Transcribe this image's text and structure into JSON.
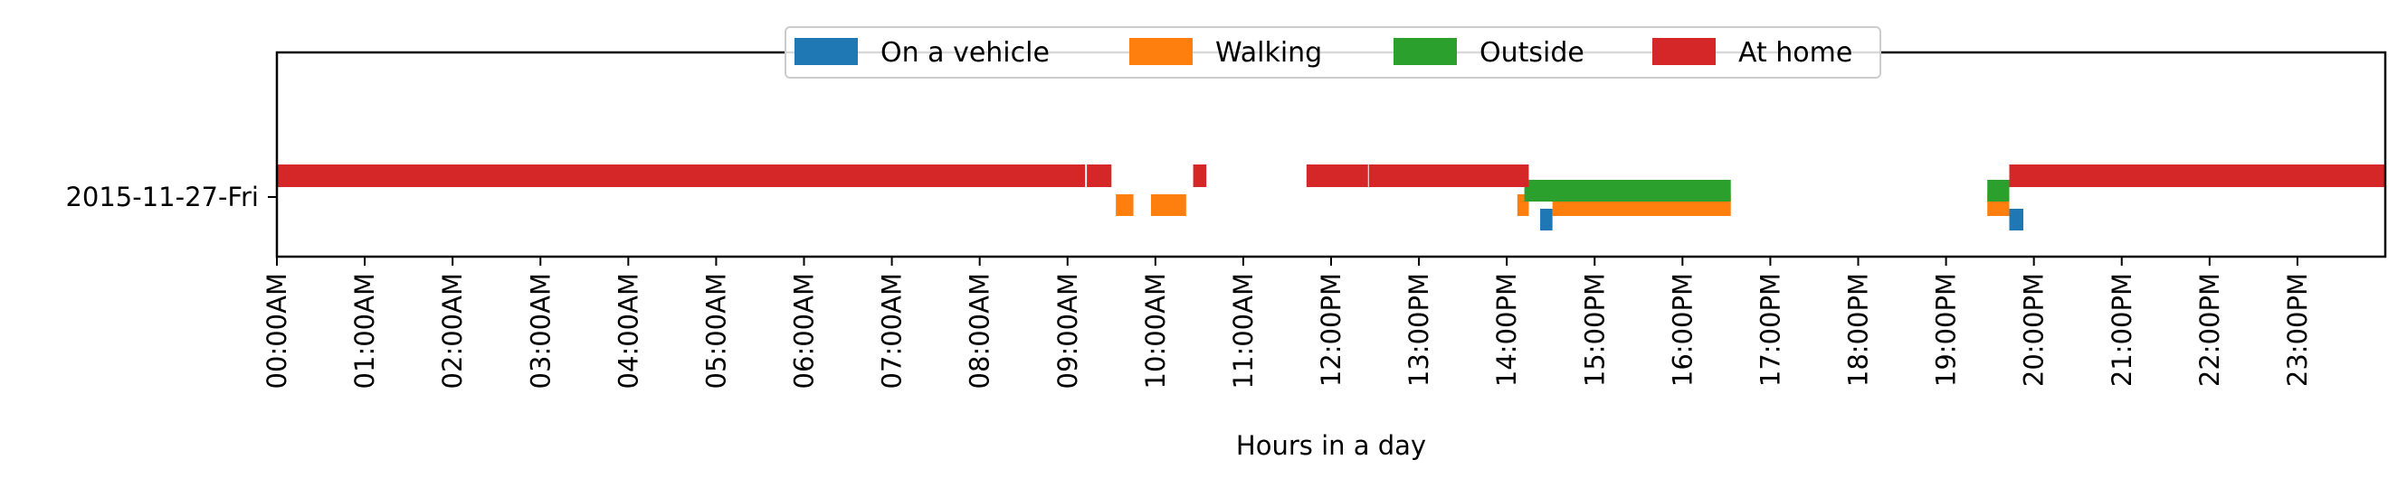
{
  "chart_data": {
    "type": "bar",
    "subtype": "horizontal-timeline",
    "title": "",
    "xlabel": "Hours in a day",
    "ylabel": "",
    "xlim": [
      0,
      24
    ],
    "x_unit": "hours",
    "grid": false,
    "legend": {
      "placement": "top-center",
      "frame": true
    },
    "categories": [
      "2015-11-27-Fri"
    ],
    "x_tick_labels": [
      "00:00AM",
      "01:00AM",
      "02:00AM",
      "03:00AM",
      "04:00AM",
      "05:00AM",
      "06:00AM",
      "07:00AM",
      "08:00AM",
      "09:00AM",
      "10:00AM",
      "11:00AM",
      "12:00PM",
      "13:00PM",
      "14:00PM",
      "15:00PM",
      "16:00PM",
      "17:00PM",
      "18:00PM",
      "19:00PM",
      "20:00PM",
      "21:00PM",
      "22:00PM",
      "23:00PM"
    ],
    "series": [
      {
        "name": "On a vehicle",
        "color": "#1f77b4",
        "intervals": [
          [
            14.38,
            14.52
          ],
          [
            19.72,
            19.88
          ]
        ]
      },
      {
        "name": "Walking",
        "color": "#ff7f0e",
        "intervals": [
          [
            9.55,
            9.75
          ],
          [
            9.95,
            10.35
          ],
          [
            14.12,
            14.25
          ],
          [
            14.52,
            16.55
          ],
          [
            19.47,
            19.72
          ]
        ]
      },
      {
        "name": "Outside",
        "color": "#2ca02c",
        "intervals": [
          [
            14.2,
            16.55
          ],
          [
            19.47,
            19.72
          ]
        ]
      },
      {
        "name": "At home",
        "color": "#d62728",
        "intervals": [
          [
            0,
            9.2
          ],
          [
            9.22,
            9.5
          ],
          [
            10.43,
            10.58
          ],
          [
            11.72,
            12.42
          ],
          [
            12.43,
            14.25
          ],
          [
            19.72,
            24
          ]
        ]
      }
    ]
  }
}
